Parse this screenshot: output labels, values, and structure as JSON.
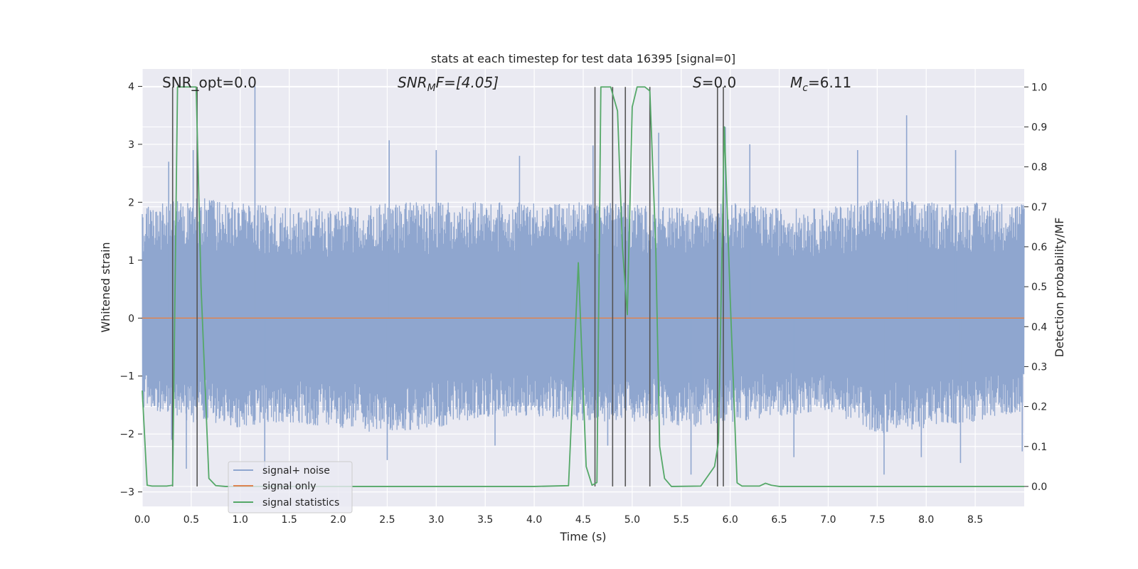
{
  "chart_data": {
    "type": "line",
    "title": "stats at each timestep for test data 16395 [signal=0]",
    "xlabel": "Time (s)",
    "ylabel": "Whitened strain",
    "y2label": "Detection probability/MF",
    "xlim": [
      0.0,
      9.0
    ],
    "ylim": [
      -3.25,
      4.3
    ],
    "y2lim": [
      -0.05,
      1.045
    ],
    "x_ticks": [
      0.0,
      0.5,
      1.0,
      1.5,
      2.0,
      2.5,
      3.0,
      3.5,
      4.0,
      4.5,
      5.0,
      5.5,
      6.0,
      6.5,
      7.0,
      7.5,
      8.0,
      8.5
    ],
    "x_tick_labels": [
      "0.0",
      "0.5",
      "1.0",
      "1.5",
      "2.0",
      "2.5",
      "3.0",
      "3.5",
      "4.0",
      "4.5",
      "5.0",
      "5.5",
      "6.0",
      "6.5",
      "7.0",
      "7.5",
      "8.0",
      "8.5"
    ],
    "y_ticks": [
      -3,
      -2,
      -1,
      0,
      1,
      2,
      3,
      4
    ],
    "y_tick_labels": [
      "−3",
      "−2",
      "−1",
      "0",
      "1",
      "2",
      "3",
      "4"
    ],
    "y2_ticks": [
      0.0,
      0.1,
      0.2,
      0.3,
      0.4,
      0.5,
      0.6,
      0.7,
      0.8,
      0.9,
      1.0
    ],
    "y2_tick_labels": [
      "0.0",
      "0.1",
      "0.2",
      "0.3",
      "0.4",
      "0.5",
      "0.6",
      "0.7",
      "0.8",
      "0.9",
      "1.0"
    ],
    "grid": true,
    "legend": {
      "placement": "lower-left"
    },
    "annotations": {
      "snr_opt": "SNR_opt=0.0",
      "snr_mf_sym": "SNR",
      "snr_mf_sub": "M",
      "snr_mf_rest": "F=[4.05]",
      "s_sym": "S",
      "s_rest": "=0.0",
      "mc_sym": "M",
      "mc_sub": "c",
      "mc_rest": "=6.11"
    },
    "series": [
      {
        "name": "signal+ noise",
        "color": "#8fa6cf",
        "kind": "noise",
        "envelope_upper": [
          [
            0.0,
            1.9
          ],
          [
            0.5,
            2.1
          ],
          [
            1.0,
            2.0
          ],
          [
            1.5,
            1.9
          ],
          [
            2.0,
            1.9
          ],
          [
            2.5,
            2.0
          ],
          [
            3.0,
            2.0
          ],
          [
            3.5,
            2.0
          ],
          [
            4.0,
            2.0
          ],
          [
            4.5,
            2.0
          ],
          [
            5.0,
            2.0
          ],
          [
            5.5,
            1.9
          ],
          [
            6.0,
            2.0
          ],
          [
            6.5,
            1.9
          ],
          [
            7.0,
            1.9
          ],
          [
            7.5,
            2.1
          ],
          [
            8.0,
            2.0
          ],
          [
            8.5,
            2.0
          ],
          [
            9.0,
            2.0
          ]
        ],
        "envelope_lower": [
          [
            0.0,
            -1.6
          ],
          [
            0.5,
            -1.8
          ],
          [
            1.0,
            -1.9
          ],
          [
            1.5,
            -1.8
          ],
          [
            2.0,
            -1.9
          ],
          [
            2.5,
            -2.0
          ],
          [
            3.0,
            -1.9
          ],
          [
            3.5,
            -1.7
          ],
          [
            4.0,
            -1.7
          ],
          [
            4.5,
            -1.8
          ],
          [
            5.0,
            -1.8
          ],
          [
            5.5,
            -1.9
          ],
          [
            6.0,
            -1.8
          ],
          [
            6.5,
            -1.7
          ],
          [
            7.0,
            -1.6
          ],
          [
            7.5,
            -2.0
          ],
          [
            8.0,
            -1.9
          ],
          [
            8.5,
            -1.8
          ],
          [
            9.0,
            -1.6
          ]
        ],
        "spikes_high": [
          [
            0.27,
            2.7
          ],
          [
            0.52,
            2.9
          ],
          [
            1.15,
            4.0
          ],
          [
            2.52,
            3.07
          ],
          [
            3.0,
            2.9
          ],
          [
            3.85,
            2.8
          ],
          [
            4.6,
            2.98
          ],
          [
            5.27,
            3.2
          ],
          [
            5.95,
            3.3
          ],
          [
            6.2,
            3.0
          ],
          [
            7.3,
            2.9
          ],
          [
            7.8,
            3.5
          ],
          [
            8.3,
            2.9
          ]
        ],
        "spikes_low": [
          [
            0.3,
            -2.1
          ],
          [
            0.45,
            -2.6
          ],
          [
            1.25,
            -2.7
          ],
          [
            2.5,
            -2.45
          ],
          [
            3.6,
            -2.2
          ],
          [
            4.75,
            -2.2
          ],
          [
            5.6,
            -2.7
          ],
          [
            6.65,
            -2.4
          ],
          [
            7.57,
            -2.7
          ],
          [
            7.95,
            -2.4
          ],
          [
            8.35,
            -2.5
          ],
          [
            8.98,
            -2.3
          ]
        ]
      },
      {
        "name": "signal only",
        "color": "#dd8452",
        "kind": "line",
        "points": [
          [
            0.0,
            0.0
          ],
          [
            9.0,
            0.0
          ]
        ]
      },
      {
        "name": "signal statistics",
        "color": "#55a868",
        "kind": "line_right_axis",
        "points": [
          [
            0.0,
            0.24
          ],
          [
            0.05,
            0.003
          ],
          [
            0.1,
            0.001
          ],
          [
            0.25,
            0.001
          ],
          [
            0.31,
            0.003
          ],
          [
            0.36,
            1.0
          ],
          [
            0.42,
            1.0
          ],
          [
            0.47,
            1.0
          ],
          [
            0.55,
            1.0
          ],
          [
            0.6,
            0.5
          ],
          [
            0.68,
            0.02
          ],
          [
            0.75,
            0.002
          ],
          [
            0.85,
            0.0
          ],
          [
            1.0,
            0.0
          ],
          [
            4.0,
            0.0
          ],
          [
            4.35,
            0.002
          ],
          [
            4.45,
            0.56
          ],
          [
            4.53,
            0.05
          ],
          [
            4.59,
            0.003
          ],
          [
            4.64,
            0.01
          ],
          [
            4.68,
            1.0
          ],
          [
            4.73,
            1.0
          ],
          [
            4.78,
            1.0
          ],
          [
            4.85,
            0.94
          ],
          [
            4.9,
            0.6
          ],
          [
            4.95,
            0.43
          ],
          [
            5.0,
            0.95
          ],
          [
            5.05,
            1.0
          ],
          [
            5.13,
            1.0
          ],
          [
            5.18,
            0.99
          ],
          [
            5.24,
            0.6
          ],
          [
            5.28,
            0.1
          ],
          [
            5.33,
            0.02
          ],
          [
            5.4,
            0.0
          ],
          [
            5.7,
            0.001
          ],
          [
            5.84,
            0.05
          ],
          [
            5.88,
            0.11
          ],
          [
            5.94,
            0.9
          ],
          [
            6.0,
            0.47
          ],
          [
            6.07,
            0.009
          ],
          [
            6.12,
            0.001
          ],
          [
            6.3,
            0.001
          ],
          [
            6.36,
            0.008
          ],
          [
            6.42,
            0.003
          ],
          [
            6.5,
            0.0
          ],
          [
            9.0,
            0.0
          ]
        ]
      }
    ],
    "vertical_lines": {
      "color": "#555555",
      "y2_range": [
        0.0,
        1.0
      ],
      "x": [
        0.31,
        0.56,
        4.62,
        4.8,
        4.93,
        5.18,
        5.87,
        5.93
      ]
    }
  }
}
